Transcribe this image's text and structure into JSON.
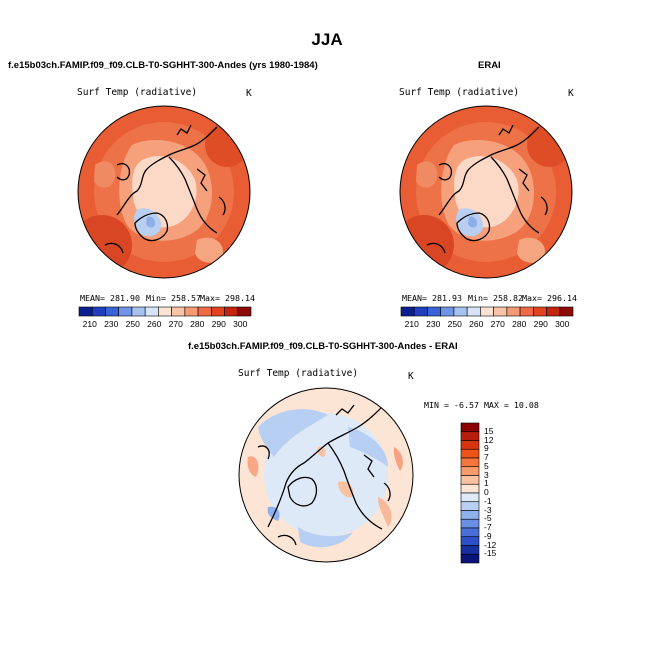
{
  "page": {
    "title": "JJA"
  },
  "panels": [
    {
      "id": "model",
      "title": "f.e15b03ch.FAMIP.f09_f09.CLB-T0-SGHHT-300-Andes (yrs 1980-1984)",
      "variable": "Surf Temp (radiative)",
      "units": "K",
      "stats": {
        "mean": "MEAN= 281.90",
        "min": "Min= 258.57",
        "max": "Max= 298.14"
      }
    },
    {
      "id": "obs",
      "title": "ERAI",
      "variable": "Surf Temp (radiative)",
      "units": "K",
      "stats": {
        "mean": "MEAN= 281.93",
        "min": "Min= 258.82",
        "max": "Max= 296.14"
      }
    },
    {
      "id": "diff",
      "title": "f.e15b03ch.FAMIP.f09_f09.CLB-T0-SGHHT-300-Andes - ERAI",
      "variable": "Surf Temp (radiative)",
      "units": "K",
      "stats": {
        "minmax": "MIN = -6.57 MAX = 10.08"
      }
    }
  ],
  "chart_data": [
    {
      "type": "heatmap",
      "projection": "north-polar-stereographic",
      "title": "f.e15b03ch.FAMIP.f09_f09.CLB-T0-SGHHT-300-Andes (yrs 1980-1984)",
      "variable": "Surf Temp (radiative)",
      "units": "K",
      "mean": 281.9,
      "min": 258.57,
      "max": 298.14,
      "colorbar_ticks": [
        "210",
        "230",
        "250",
        "260",
        "270",
        "280",
        "290",
        "300"
      ],
      "colorbar_colors": [
        "#0c1f8f",
        "#1f3fbf",
        "#3a62d9",
        "#6f93e6",
        "#a6c2f0",
        "#d6e4f8",
        "#fbe3d3",
        "#f8c3a6",
        "#f59a73",
        "#ef6a44",
        "#e2421f",
        "#c3240e",
        "#8e0a06"
      ]
    },
    {
      "type": "heatmap",
      "projection": "north-polar-stereographic",
      "title": "ERAI",
      "variable": "Surf Temp (radiative)",
      "units": "K",
      "mean": 281.93,
      "min": 258.82,
      "max": 296.14,
      "colorbar_ticks": [
        "210",
        "230",
        "250",
        "260",
        "270",
        "280",
        "290",
        "300"
      ],
      "colorbar_colors": [
        "#0c1f8f",
        "#1f3fbf",
        "#3a62d9",
        "#6f93e6",
        "#a6c2f0",
        "#d6e4f8",
        "#fbe3d3",
        "#f8c3a6",
        "#f59a73",
        "#ef6a44",
        "#e2421f",
        "#c3240e",
        "#8e0a06"
      ]
    },
    {
      "type": "heatmap",
      "projection": "north-polar-stereographic",
      "title": "f.e15b03ch.FAMIP.f09_f09.CLB-T0-SGHHT-300-Andes - ERAI",
      "variable": "Surf Temp (radiative)",
      "units": "K",
      "min": -6.57,
      "max": 10.08,
      "colorbar_ticks": [
        "15",
        "12",
        "9",
        "7",
        "5",
        "3",
        "1",
        "0",
        "-1",
        "-3",
        "-5",
        "-7",
        "-9",
        "-12",
        "-15"
      ],
      "colorbar_colors": [
        "#8b0000",
        "#b81c0c",
        "#d8340f",
        "#f05318",
        "#f5763c",
        "#f89b6c",
        "#fbc2a2",
        "#fde5d6",
        "#dde9f7",
        "#b7cff2",
        "#8eb0ec",
        "#6a8fe3",
        "#4a6fd8",
        "#2d4fc8",
        "#16309f",
        "#0a137a"
      ]
    }
  ]
}
